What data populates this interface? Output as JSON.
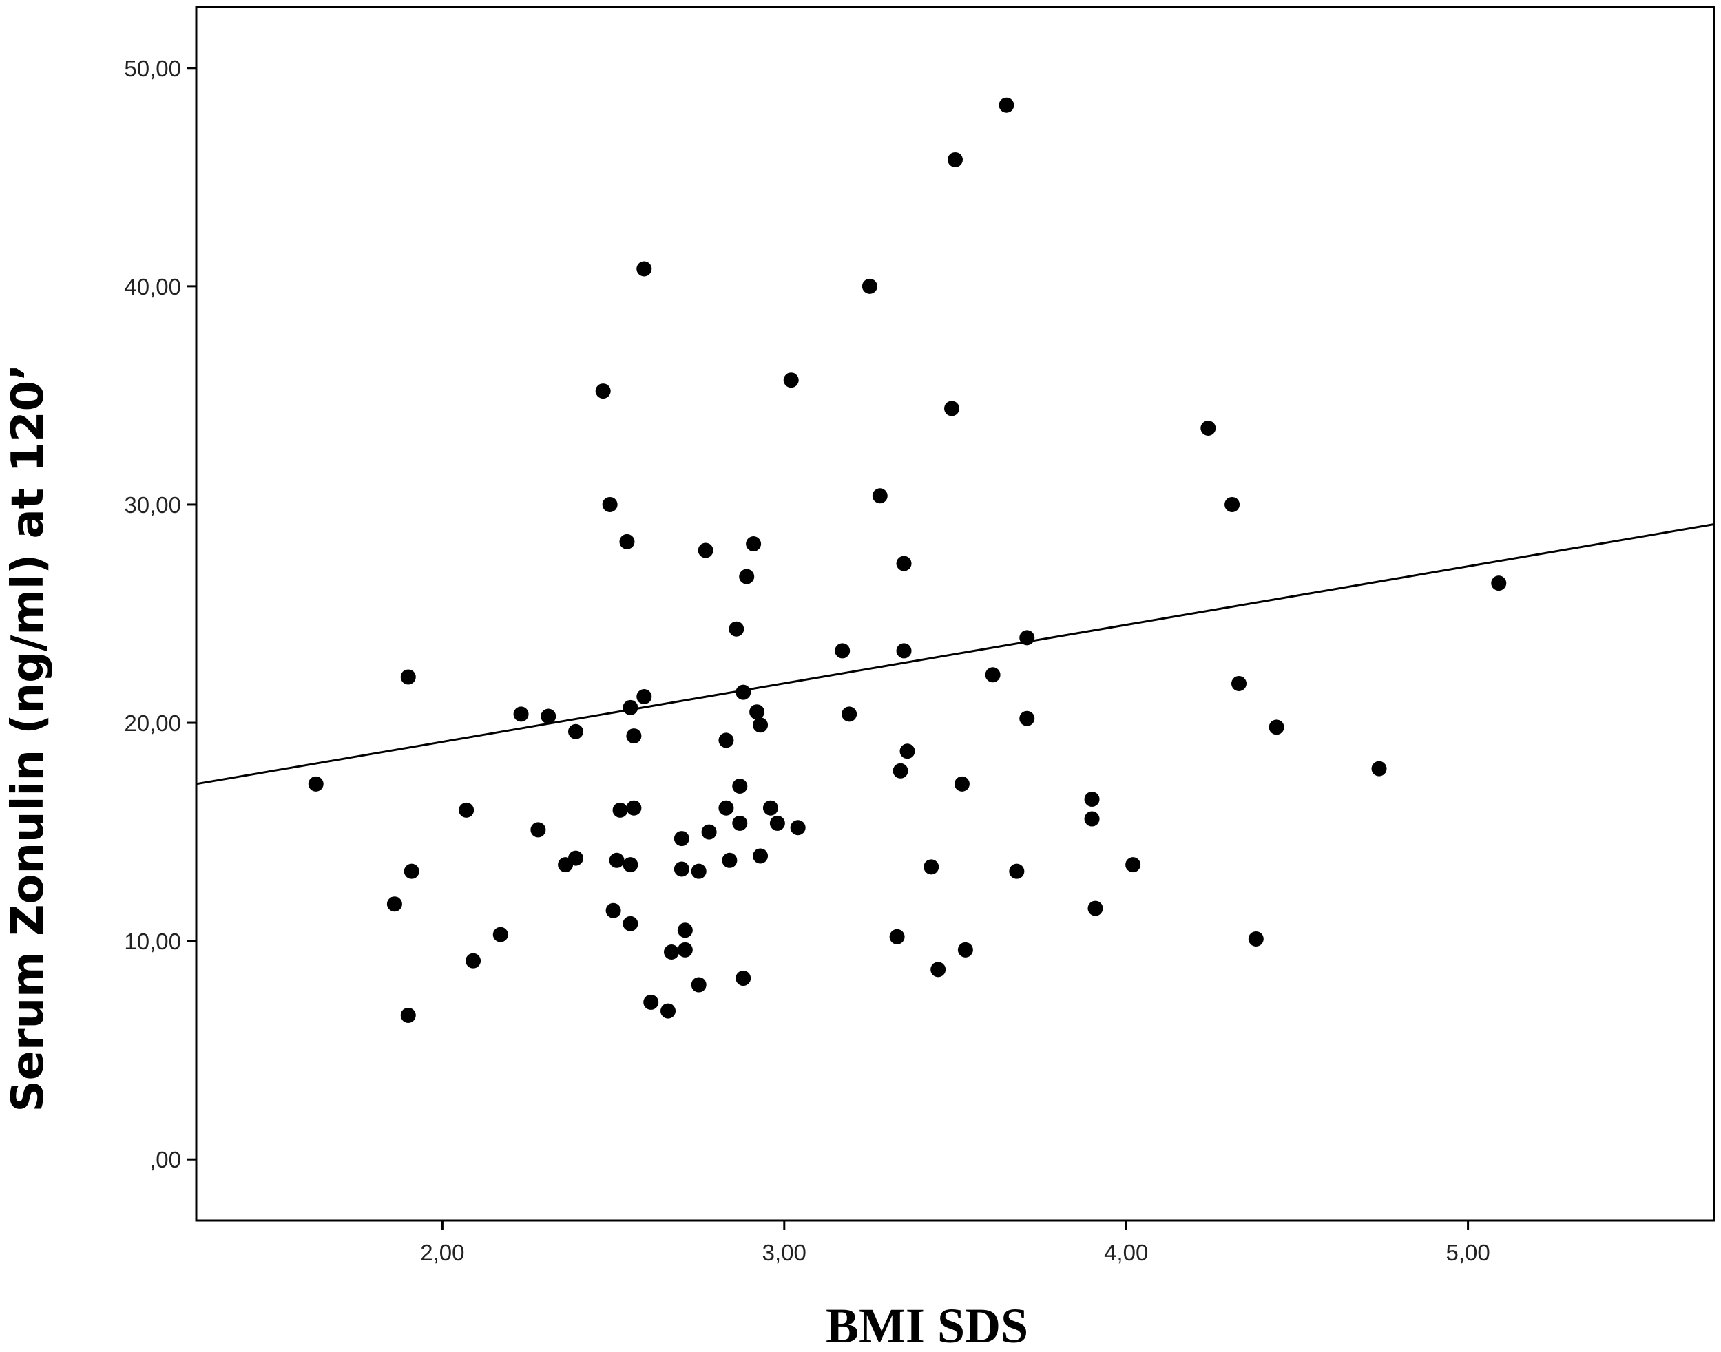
{
  "chart_data": {
    "type": "scatter",
    "xlabel": "BMI SDS",
    "ylabel": "Serum Zonulin (ng/ml) at 120’",
    "xlim": [
      1.28,
      5.72
    ],
    "ylim": [
      -2.8,
      52.8
    ],
    "x_ticks": [
      {
        "value": 2,
        "label": "2,00"
      },
      {
        "value": 3,
        "label": "3,00"
      },
      {
        "value": 4,
        "label": "4,00"
      },
      {
        "value": 5,
        "label": "5,00"
      }
    ],
    "y_ticks": [
      {
        "value": 0,
        "label": ",00"
      },
      {
        "value": 10,
        "label": "10,00"
      },
      {
        "value": 20,
        "label": "20,00"
      },
      {
        "value": 30,
        "label": "30,00"
      },
      {
        "value": 40,
        "label": "40,00"
      },
      {
        "value": 50,
        "label": "50,00"
      }
    ],
    "grid": false,
    "legend": "none",
    "points": [
      [
        1.63,
        17.2
      ],
      [
        1.86,
        11.7
      ],
      [
        1.9,
        22.1
      ],
      [
        1.9,
        6.6
      ],
      [
        1.91,
        13.2
      ],
      [
        2.07,
        16.0
      ],
      [
        2.09,
        9.1
      ],
      [
        2.17,
        10.3
      ],
      [
        2.23,
        20.4
      ],
      [
        2.28,
        15.1
      ],
      [
        2.31,
        20.3
      ],
      [
        2.36,
        13.5
      ],
      [
        2.39,
        19.6
      ],
      [
        2.39,
        13.8
      ],
      [
        2.47,
        35.2
      ],
      [
        2.49,
        30.0
      ],
      [
        2.5,
        11.4
      ],
      [
        2.51,
        13.7
      ],
      [
        2.52,
        16.0
      ],
      [
        2.54,
        28.3
      ],
      [
        2.55,
        20.7
      ],
      [
        2.55,
        13.5
      ],
      [
        2.55,
        10.8
      ],
      [
        2.56,
        19.4
      ],
      [
        2.56,
        16.1
      ],
      [
        2.59,
        40.8
      ],
      [
        2.59,
        21.2
      ],
      [
        2.61,
        7.2
      ],
      [
        2.66,
        6.8
      ],
      [
        2.67,
        9.5
      ],
      [
        2.7,
        14.7
      ],
      [
        2.7,
        13.3
      ],
      [
        2.71,
        10.5
      ],
      [
        2.71,
        9.6
      ],
      [
        2.75,
        13.2
      ],
      [
        2.75,
        8.0
      ],
      [
        2.77,
        27.9
      ],
      [
        2.78,
        15.0
      ],
      [
        2.83,
        19.2
      ],
      [
        2.83,
        16.1
      ],
      [
        2.84,
        13.7
      ],
      [
        2.86,
        24.3
      ],
      [
        2.87,
        17.1
      ],
      [
        2.87,
        15.4
      ],
      [
        2.88,
        21.4
      ],
      [
        2.88,
        8.3
      ],
      [
        2.89,
        26.7
      ],
      [
        2.91,
        28.2
      ],
      [
        2.92,
        20.5
      ],
      [
        2.93,
        19.9
      ],
      [
        2.93,
        13.9
      ],
      [
        2.96,
        16.1
      ],
      [
        2.98,
        15.4
      ],
      [
        3.02,
        35.7
      ],
      [
        3.04,
        15.2
      ],
      [
        3.17,
        23.3
      ],
      [
        3.19,
        20.4
      ],
      [
        3.25,
        40.0
      ],
      [
        3.28,
        30.4
      ],
      [
        3.33,
        10.2
      ],
      [
        3.34,
        17.8
      ],
      [
        3.35,
        27.3
      ],
      [
        3.35,
        23.3
      ],
      [
        3.36,
        18.7
      ],
      [
        3.43,
        13.4
      ],
      [
        3.45,
        8.7
      ],
      [
        3.49,
        34.4
      ],
      [
        3.5,
        45.8
      ],
      [
        3.52,
        17.2
      ],
      [
        3.53,
        9.6
      ],
      [
        3.61,
        22.2
      ],
      [
        3.65,
        48.3
      ],
      [
        3.68,
        13.2
      ],
      [
        3.71,
        23.9
      ],
      [
        3.71,
        20.2
      ],
      [
        3.9,
        16.5
      ],
      [
        3.9,
        15.6
      ],
      [
        3.91,
        11.5
      ],
      [
        4.02,
        13.5
      ],
      [
        4.24,
        33.5
      ],
      [
        4.31,
        30.0
      ],
      [
        4.33,
        21.8
      ],
      [
        4.38,
        10.1
      ],
      [
        4.44,
        19.8
      ],
      [
        4.74,
        17.9
      ],
      [
        5.09,
        26.4
      ]
    ],
    "fit_line": {
      "x": [
        1.28,
        5.72
      ],
      "y": [
        17.2,
        29.1
      ]
    }
  }
}
